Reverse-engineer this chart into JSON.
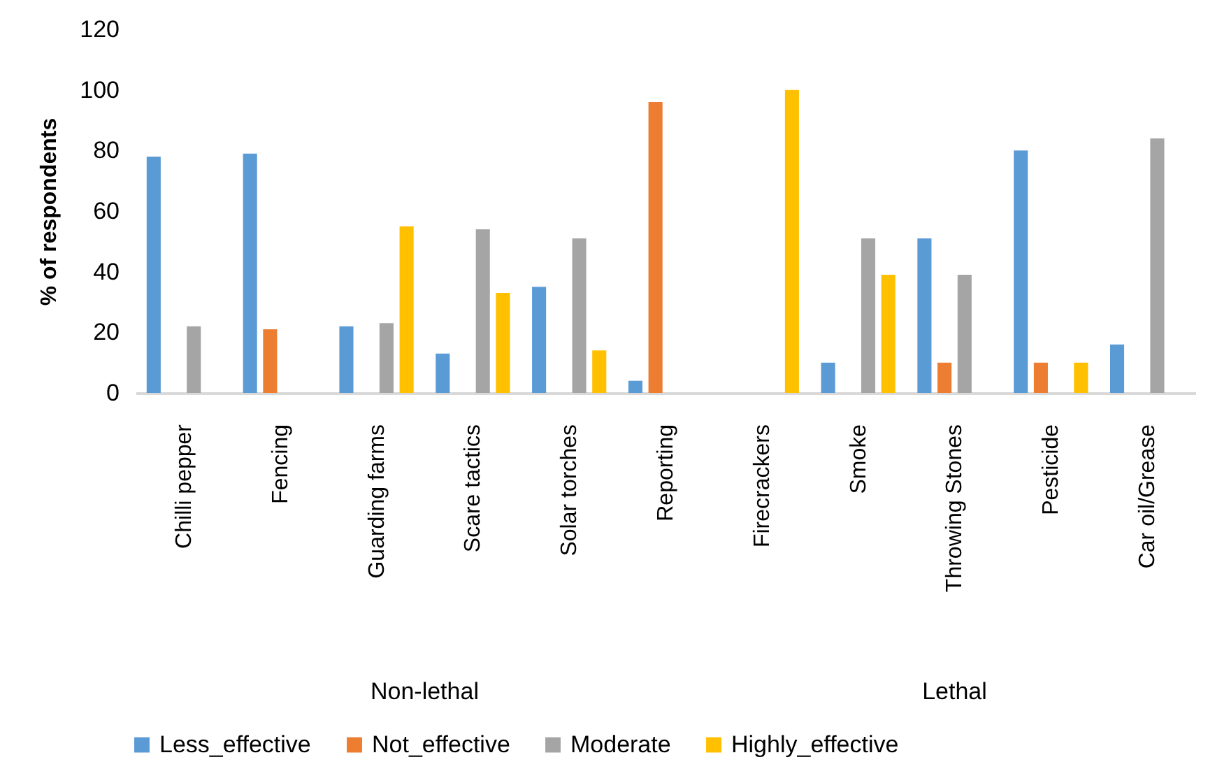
{
  "chart_data": {
    "type": "bar",
    "ylabel": "% of respondents",
    "categories": [
      "Chilli pepper",
      "Fencing",
      "Guarding farms",
      "Scare tactics",
      "Solar torches",
      "Reporting",
      "Firecrackers",
      "Smoke",
      "Throwing Stones",
      "Pesticide",
      "Car oil/Grease"
    ],
    "series": [
      {
        "name": "Less_effective",
        "color": "#5b9bd5",
        "values": [
          78,
          79,
          22,
          13,
          35,
          4,
          null,
          10,
          51,
          80,
          16
        ]
      },
      {
        "name": "Not_effective",
        "color": "#ed7d31",
        "values": [
          null,
          21,
          null,
          null,
          null,
          96,
          null,
          null,
          10,
          10,
          null
        ]
      },
      {
        "name": "Moderate",
        "color": "#a5a5a5",
        "values": [
          22,
          null,
          23,
          54,
          51,
          null,
          null,
          51,
          39,
          null,
          84
        ]
      },
      {
        "name": "Highly_effective",
        "color": "#ffc000",
        "values": [
          null,
          null,
          55,
          33,
          14,
          null,
          100,
          39,
          null,
          10,
          null
        ]
      }
    ],
    "ylim": [
      0,
      120
    ],
    "yticks": [
      0,
      20,
      40,
      60,
      80,
      100,
      120
    ],
    "annotations": [
      "Non-lethal",
      "Lethal"
    ],
    "grid": false,
    "legend": "bottom"
  }
}
